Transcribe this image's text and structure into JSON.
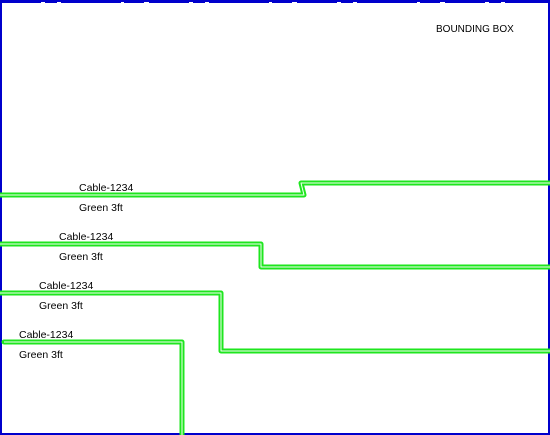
{
  "bounding_box": {
    "label": "BOUNDING BOX",
    "border_color": "#0000cc"
  },
  "cable_color": "#1ee61e",
  "cables": [
    {
      "name": "Cable-1234",
      "spec": "Green 3ft"
    },
    {
      "name": "Cable-1234",
      "spec": "Green 3ft"
    },
    {
      "name": "Cable-1234",
      "spec": "Green 3ft"
    },
    {
      "name": "Cable-1234",
      "spec": "Green 3ft"
    }
  ]
}
